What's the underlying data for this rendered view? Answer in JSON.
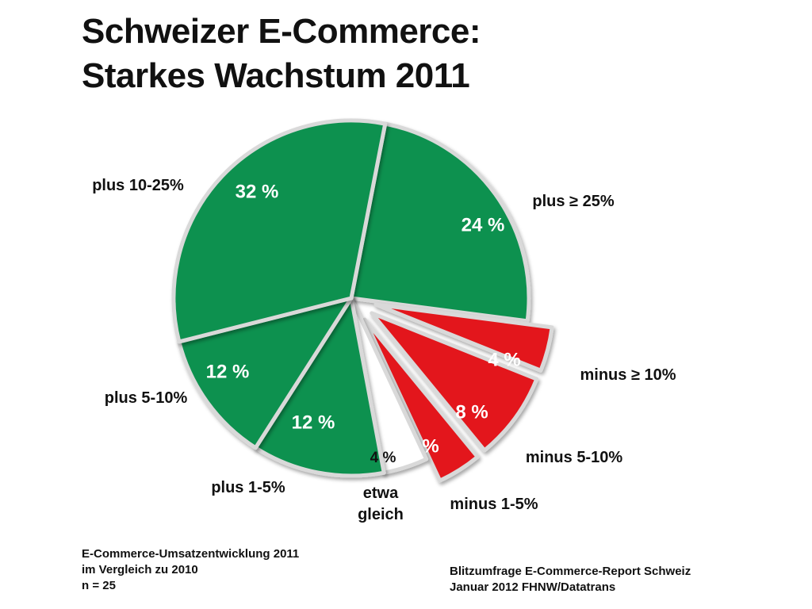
{
  "title": {
    "line1": "Schweizer E-Commerce:",
    "line2": "Starkes Wachstum 2011"
  },
  "chart_data": {
    "type": "pie",
    "slices": [
      {
        "label": "plus ≥ 25%",
        "value": 24,
        "value_label": "24 %",
        "color": "#0f9150",
        "exploded": false
      },
      {
        "label": "minus ≥ 10%",
        "value": 4,
        "value_label": "4 %",
        "color": "#e3161b",
        "exploded": true
      },
      {
        "label": "minus 5-10%",
        "value": 8,
        "value_label": "8 %",
        "color": "#e3161b",
        "exploded": true
      },
      {
        "label": "minus 1-5%",
        "value": 4,
        "value_label": "4 %",
        "color": "#e3161b",
        "exploded": true
      },
      {
        "label": "etwa gleich",
        "value": 4,
        "value_label": "4 %",
        "color": "#ffffff",
        "exploded": false
      },
      {
        "label": "plus 1-5%",
        "value": 12,
        "value_label": "12 %",
        "color": "#0f9150",
        "exploded": false
      },
      {
        "label": "plus 5-10%",
        "value": 12,
        "value_label": "12 %",
        "color": "#0f9150",
        "exploded": false
      },
      {
        "label": "plus 10-25%",
        "value": 32,
        "value_label": "32 %",
        "color": "#0f9150",
        "exploded": false
      }
    ]
  },
  "footnote_left": {
    "line1": "E-Commerce-Umsatzentwicklung 2011",
    "line2": "im Vergleich zu 2010",
    "line3": "n = 25"
  },
  "footnote_right": {
    "line1": "Blitzumfrage E-Commerce-Report Schweiz",
    "line2": "Januar 2012 FHNW/Datatrans"
  }
}
